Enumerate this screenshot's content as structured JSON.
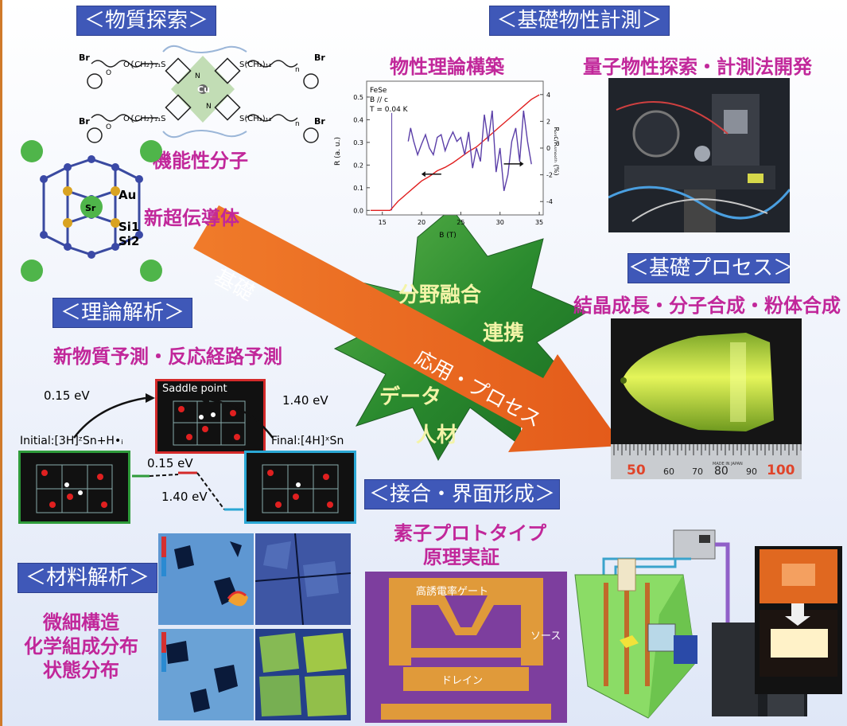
{
  "headers": {
    "material_search": "＜物質探索＞",
    "basic_property": "＜基礎物性計測＞",
    "theory_analysis": "＜理論解析＞",
    "basic_process": "＜基礎プロセス＞",
    "junction_interface": "＜接合・界面形成＞",
    "material_analysis": "＜材料解析＞"
  },
  "captions": {
    "functional_molecule": "機能性分子",
    "new_superconductor": "新超伝導体",
    "property_theory": "物性理論構築",
    "quantum_measurement": "量子物性探索・計測法開発",
    "crystal_growth": "結晶成長・分子合成・粉体合成",
    "new_material_prediction": "新物質予測・反応経路予測",
    "device_prototype_1": "素子プロトタイプ",
    "device_prototype_2": "原理実証",
    "microstructure": "微細構造",
    "chemical_composition": "化学組成分布",
    "state_distribution": "状態分布"
  },
  "arrow": {
    "basic": "基礎",
    "application": "応用・プロセス"
  },
  "star": {
    "field_fusion": "分野融合",
    "cooperation": "連携",
    "data": "データ",
    "human_resources": "人材"
  },
  "molecule": {
    "br": "Br",
    "cu": "Cu",
    "n": "N",
    "s_chain": "S(CH₂)₁₁",
    "o_chain": "O{CH₂}₁₁S",
    "o": "O",
    "n_sub": "n"
  },
  "crystal": {
    "au": "Au",
    "si1": "Si1",
    "si2": "Si2",
    "sr": "Sr"
  },
  "reaction": {
    "saddle_point": "Saddle point",
    "energy_forward": "0.15 eV",
    "energy_backward": "1.40 eV",
    "initial_label": "Initial:[3H]ᶻSn+H•ᵢ",
    "final_label": "Final:[4H]ˣSn",
    "level_upper": "0.15 eV",
    "level_lower": "1.40 eV"
  },
  "device": {
    "gate": "高誘電率ゲート",
    "source": "ソース",
    "drain": "ドレイン"
  },
  "ruler": {
    "ticks": [
      "50",
      "60",
      "70",
      "80",
      "90",
      "100"
    ],
    "tiny_text": "MADE IN JAPAN"
  },
  "colors": {
    "header_bg": "#3f58b8",
    "caption_pink": "#c1279a",
    "arrow_orange": "#e8662a",
    "star_green": "#2e8b2e",
    "crystal_yellow": "#d8f23a"
  },
  "chart_data": {
    "type": "line",
    "annotation": [
      "FeSe",
      "B // c",
      "T = 0.04 K"
    ],
    "xlabel": "B (T)",
    "ylabel": "R (a. u.)",
    "y2label": "Rₒₛc/Rₛₘₒₒₜₕ (%)",
    "xlim": [
      13,
      35.5
    ],
    "ylim": [
      -0.02,
      0.57
    ],
    "y2lim": [
      -5,
      5
    ],
    "xticks": [
      15,
      20,
      25,
      30,
      35
    ],
    "yticks": [
      0.0,
      0.1,
      0.2,
      0.3,
      0.4,
      0.5
    ],
    "y2ticks": [
      -4,
      -2,
      0,
      2,
      4
    ],
    "series": [
      {
        "color": "#e02020",
        "axis": "left",
        "x": [
          13.5,
          16.0,
          16.5,
          17,
          18,
          19,
          20,
          21,
          22,
          23,
          24,
          25,
          26,
          27,
          28,
          29,
          30,
          31,
          32,
          33,
          34,
          35
        ],
        "y": [
          0.0,
          0.0,
          0.02,
          0.04,
          0.07,
          0.1,
          0.13,
          0.15,
          0.175,
          0.19,
          0.21,
          0.235,
          0.26,
          0.28,
          0.31,
          0.34,
          0.37,
          0.4,
          0.43,
          0.46,
          0.49,
          0.51
        ]
      },
      {
        "color": "#5b3fa8",
        "axis": "right",
        "x": [
          18.3,
          18.6,
          19.0,
          19.5,
          20.0,
          20.5,
          21.0,
          21.5,
          22.0,
          22.5,
          23.0,
          23.5,
          24.0,
          24.5,
          25.0,
          25.5,
          26.0,
          26.5,
          27.0,
          27.5,
          28.0,
          28.5,
          29.0,
          29.5,
          30.0,
          30.5,
          31.0,
          31.5,
          32.0,
          32.5,
          33.0,
          33.5,
          34.0
        ],
        "y": [
          0.5,
          1.5,
          0.5,
          -0.5,
          0.3,
          1.0,
          0.0,
          -0.5,
          0.8,
          1.0,
          -0.2,
          0.6,
          1.2,
          0.5,
          0.8,
          -0.5,
          1.2,
          -1.5,
          0.0,
          -1.0,
          2.5,
          0.5,
          2.8,
          -1.8,
          0.0,
          -3.2,
          -2.0,
          0.5,
          1.5,
          -1.0,
          2.8,
          0.5,
          -1.2
        ]
      }
    ],
    "arrows": [
      {
        "direction": "left",
        "x": 21.5,
        "y": 0.16
      },
      {
        "direction": "right",
        "x": 31.5,
        "y": 0.205
      }
    ]
  }
}
